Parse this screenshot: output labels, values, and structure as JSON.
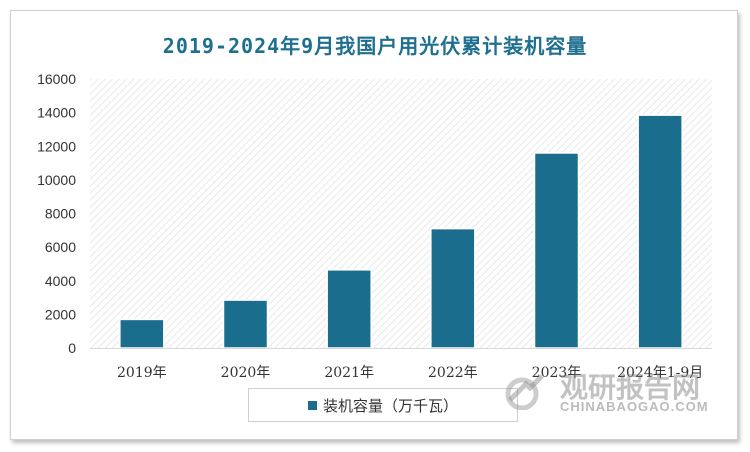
{
  "chart_data": {
    "type": "bar",
    "title": "2019-2024年9月我国户用光伏累计装机容量",
    "categories": [
      "2019年",
      "2020年",
      "2021年",
      "2022年",
      "2023年",
      "2024年1-9月"
    ],
    "series": [
      {
        "name": "装机容量（万千瓦）",
        "values": [
          1700,
          2850,
          4650,
          7100,
          11600,
          13850
        ],
        "color": "#1b6d8d"
      }
    ],
    "ylim": [
      0,
      16000
    ],
    "yticks": [
      0,
      2000,
      4000,
      6000,
      8000,
      10000,
      12000,
      14000,
      16000
    ],
    "grid": false,
    "legend_position": "bottom",
    "xlabel": "",
    "ylabel": ""
  },
  "watermark": {
    "name": "观研报告网",
    "url": "CHINABAOGAO.COM"
  }
}
